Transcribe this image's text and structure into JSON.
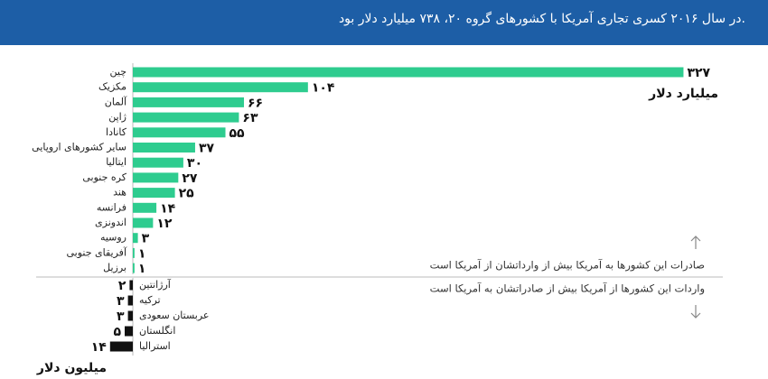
{
  "header": {
    "title": "در سال ۲۰۱۶ کسری تجاری آمریکا با کشورهای گروه ۲۰، ۷۳۸ میلیارد دلار بود."
  },
  "chart_data": [
    {
      "type": "bar",
      "orientation": "horizontal",
      "unit": "میلیارد دلار",
      "annotation": "صادرات این کشورها به آمریکا بیش از وارداتشان از آمریکا است",
      "categories": [
        "چین",
        "مکزیک",
        "آلمان",
        "ژاپن",
        "کانادا",
        "سایر کشورهای اروپایی",
        "ایتالیا",
        "کره جنوبی",
        "هند",
        "فرانسه",
        "اندونزی",
        "روسیه",
        "آفریقای جنوبی",
        "برزیل"
      ],
      "values": [
        327,
        104,
        66,
        63,
        55,
        37,
        30,
        27,
        25,
        14,
        12,
        3,
        1,
        1
      ],
      "value_labels": [
        "۳۲۷",
        "۱۰۴",
        "۶۶",
        "۶۳",
        "۵۵",
        "۳۷",
        "۳۰",
        "۲۷",
        "۲۵",
        "۱۴",
        "۱۲",
        "۳",
        "۱",
        "۱"
      ],
      "color": "#2ecc8f",
      "xlim": [
        0,
        345
      ]
    },
    {
      "type": "bar",
      "orientation": "horizontal",
      "unit": "میلیون دلار",
      "annotation": "واردات این کشورها  از آمریکا بیش از صادراتشان به آمریکا است",
      "categories": [
        "آرژانتین",
        "ترکیه",
        "عربستان سعودی",
        "انگلستان",
        "استرالیا"
      ],
      "values": [
        2,
        3,
        3,
        5,
        14
      ],
      "value_labels": [
        "۲",
        "۳",
        "۳",
        "۵",
        "۱۴"
      ],
      "color": "#111111",
      "xlim": [
        0,
        50
      ]
    }
  ]
}
